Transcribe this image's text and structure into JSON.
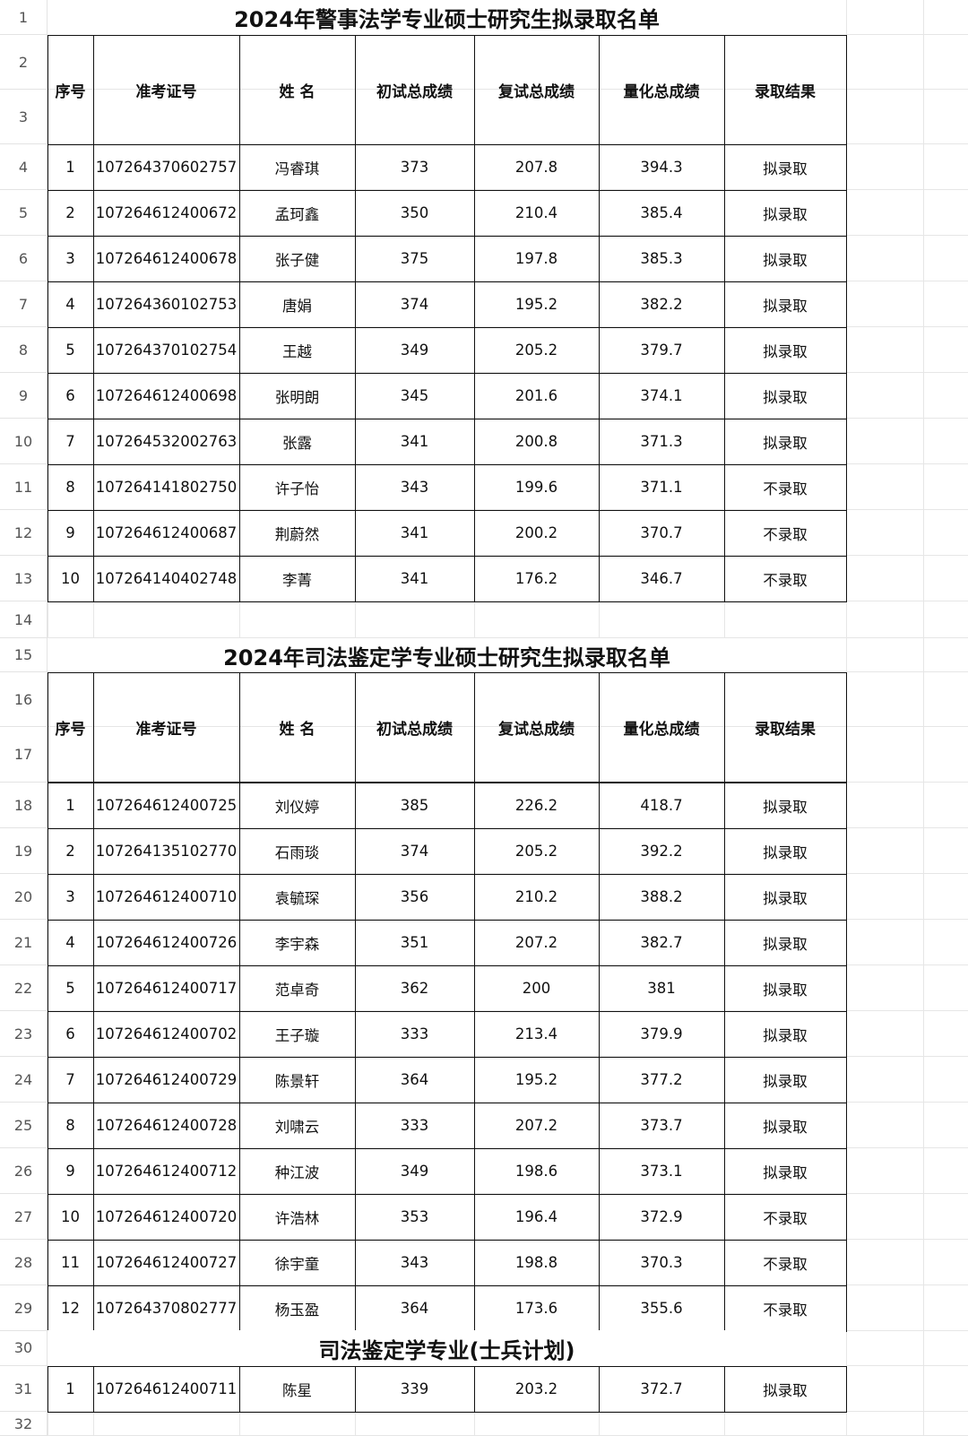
{
  "headers": [
    "序号",
    "准考证号",
    "姓 名",
    "初试总成绩",
    "复试总成绩",
    "量化总成绩",
    "录取结果"
  ],
  "table1": {
    "title": "2024年警事法学专业硕士研究生拟录取名单",
    "rows": [
      [
        "1",
        "107264370602757",
        "冯睿琪",
        "373",
        "207.8",
        "394.3",
        "拟录取"
      ],
      [
        "2",
        "107264612400672",
        "孟珂鑫",
        "350",
        "210.4",
        "385.4",
        "拟录取"
      ],
      [
        "3",
        "107264612400678",
        "张子健",
        "375",
        "197.8",
        "385.3",
        "拟录取"
      ],
      [
        "4",
        "107264360102753",
        "唐娟",
        "374",
        "195.2",
        "382.2",
        "拟录取"
      ],
      [
        "5",
        "107264370102754",
        "王越",
        "349",
        "205.2",
        "379.7",
        "拟录取"
      ],
      [
        "6",
        "107264612400698",
        "张明朗",
        "345",
        "201.6",
        "374.1",
        "拟录取"
      ],
      [
        "7",
        "107264532002763",
        "张露",
        "341",
        "200.8",
        "371.3",
        "拟录取"
      ],
      [
        "8",
        "107264141802750",
        "许子怡",
        "343",
        "199.6",
        "371.1",
        "不录取"
      ],
      [
        "9",
        "107264612400687",
        "荆蔚然",
        "341",
        "200.2",
        "370.7",
        "不录取"
      ],
      [
        "10",
        "107264140402748",
        "李菁",
        "341",
        "176.2",
        "346.7",
        "不录取"
      ]
    ]
  },
  "table2": {
    "title": "2024年司法鉴定学专业硕士研究生拟录取名单",
    "rows": [
      [
        "1",
        "107264612400725",
        "刘仪婷",
        "385",
        "226.2",
        "418.7",
        "拟录取"
      ],
      [
        "2",
        "107264135102770",
        "石雨琰",
        "374",
        "205.2",
        "392.2",
        "拟录取"
      ],
      [
        "3",
        "107264612400710",
        "袁毓琛",
        "356",
        "210.2",
        "388.2",
        "拟录取"
      ],
      [
        "4",
        "107264612400726",
        "李宇森",
        "351",
        "207.2",
        "382.7",
        "拟录取"
      ],
      [
        "5",
        "107264612400717",
        "范卓奇",
        "362",
        "200",
        "381",
        "拟录取"
      ],
      [
        "6",
        "107264612400702",
        "王子璇",
        "333",
        "213.4",
        "379.9",
        "拟录取"
      ],
      [
        "7",
        "107264612400729",
        "陈景轩",
        "364",
        "195.2",
        "377.2",
        "拟录取"
      ],
      [
        "8",
        "107264612400728",
        "刘啸云",
        "333",
        "207.2",
        "373.7",
        "拟录取"
      ],
      [
        "9",
        "107264612400712",
        "种江波",
        "349",
        "198.6",
        "373.1",
        "拟录取"
      ],
      [
        "10",
        "107264612400720",
        "许浩林",
        "353",
        "196.4",
        "372.9",
        "不录取"
      ],
      [
        "11",
        "107264612400727",
        "徐宇童",
        "343",
        "198.8",
        "370.3",
        "不录取"
      ],
      [
        "12",
        "107264370802777",
        "杨玉盈",
        "364",
        "173.6",
        "355.6",
        "不录取"
      ]
    ]
  },
  "table3": {
    "title": "司法鉴定学专业(士兵计划)",
    "rows": [
      [
        "1",
        "107264612400711",
        "陈星",
        "339",
        "203.2",
        "372.7",
        "拟录取"
      ]
    ]
  },
  "row_numbers": [
    "1",
    "2",
    "3",
    "4",
    "5",
    "6",
    "7",
    "8",
    "9",
    "10",
    "11",
    "12",
    "13",
    "14",
    "15",
    "16",
    "17",
    "18",
    "19",
    "20",
    "21",
    "22",
    "23",
    "24",
    "25",
    "26",
    "27",
    "28",
    "29",
    "30",
    "31",
    "32"
  ]
}
